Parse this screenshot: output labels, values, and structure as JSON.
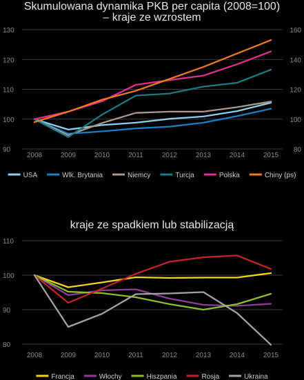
{
  "titles": {
    "top_line1": "Skumulowana dynamika PKB per capita (2008=100)",
    "top_line2": "– kraje ze wzrostem",
    "bottom": "kraje ze spadkiem lub stabilizacją"
  },
  "chart_data": [
    {
      "type": "line",
      "title": "Skumulowana dynamika PKB per capita (2008=100) – kraje ze wzrostem",
      "x": [
        "2008",
        "2009",
        "2010",
        "2011",
        "2012",
        "2013",
        "2014",
        "2015"
      ],
      "ylim_left": [
        90,
        130
      ],
      "yticks_left": [
        90,
        100,
        110,
        120,
        130
      ],
      "ylim_right": [
        80,
        160
      ],
      "yticks_right": [
        80,
        100,
        120,
        140,
        160
      ],
      "grid": true,
      "legend_position": "bottom",
      "series": [
        {
          "name": "USA",
          "axis": "left",
          "color": "#8ecfef",
          "values": [
            100,
            96.5,
            98.0,
            98.8,
            100.1,
            100.9,
            102.7,
            105.5
          ]
        },
        {
          "name": "Wlk. Brytania",
          "axis": "left",
          "color": "#1b7fc7",
          "values": [
            100,
            95.1,
            95.9,
            96.9,
            97.5,
            98.8,
            101.0,
            103.5
          ]
        },
        {
          "name": "Niemcy",
          "axis": "left",
          "color": "#a59a8c",
          "values": [
            100,
            94.6,
            98.7,
            102.1,
            102.5,
            102.5,
            104.0,
            105.9
          ]
        },
        {
          "name": "Turcja",
          "axis": "left",
          "color": "#1c7b82",
          "values": [
            100,
            94.0,
            101.5,
            107.9,
            108.6,
            110.9,
            112.2,
            116.6
          ]
        },
        {
          "name": "Polska",
          "axis": "left",
          "color": "#e02f8e",
          "values": [
            100,
            102.5,
            106.0,
            111.5,
            113.1,
            114.6,
            118.4,
            122.7
          ]
        },
        {
          "name": "Chiny (ps)",
          "axis": "right",
          "color": "#f07a1f",
          "values": [
            98,
            105,
            113,
            119,
            127,
            135,
            144,
            153
          ]
        }
      ]
    },
    {
      "type": "line",
      "title": "kraje ze spadkiem lub stabilizacją",
      "x": [
        "2008",
        "2009",
        "2010",
        "2011",
        "2012",
        "2013",
        "2014",
        "2015"
      ],
      "ylim": [
        80,
        110
      ],
      "yticks": [
        80,
        90,
        100,
        110
      ],
      "grid": true,
      "legend_position": "bottom",
      "series": [
        {
          "name": "Francja",
          "color": "#f3d51b",
          "values": [
            100,
            96.5,
            97.9,
            99.4,
            99.2,
            99.3,
            99.3,
            100.6
          ]
        },
        {
          "name": "Włochy",
          "color": "#8c3f94",
          "values": [
            100,
            94.2,
            95.6,
            95.9,
            93.2,
            91.4,
            91.1,
            91.7
          ]
        },
        {
          "name": "Hiszpania",
          "color": "#90bd2a",
          "values": [
            100,
            95.2,
            94.8,
            93.6,
            91.6,
            90.0,
            91.6,
            94.6
          ]
        },
        {
          "name": "Rosja",
          "color": "#c3242b",
          "values": [
            100,
            92.0,
            96.1,
            100.4,
            103.9,
            105.2,
            105.7,
            101.8
          ]
        },
        {
          "name": "Ukraina",
          "color": "#a3a3a3",
          "values": [
            100,
            85.0,
            88.8,
            94.5,
            94.7,
            95.1,
            89.0,
            79.8
          ]
        }
      ]
    }
  ]
}
